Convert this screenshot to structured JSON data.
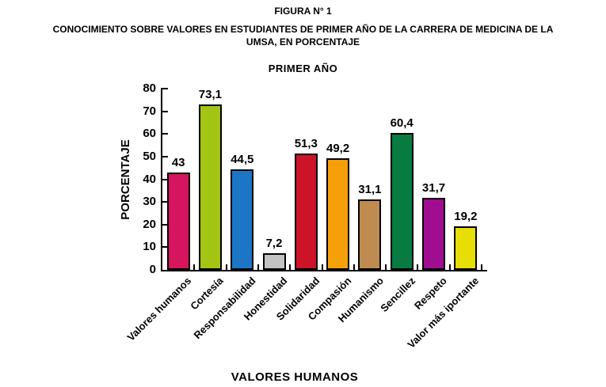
{
  "header": {
    "figure_label": "FIGURA N° 1",
    "title_line1": "CONOCIMIENTO SOBRE VALORES EN ESTUDIANTES DE PRIMER AÑO DE LA CARRERA DE MEDICINA DE LA",
    "title_line2": "UMSA, EN PORCENTAJE"
  },
  "chart_data": {
    "type": "bar",
    "title": "PRIMER AÑO",
    "xlabel": "VALORES HUMANOS",
    "ylabel": "PORCENTAJE",
    "ylim": [
      0,
      80
    ],
    "yticks": [
      0,
      10,
      20,
      30,
      40,
      50,
      60,
      70,
      80
    ],
    "grid": false,
    "legend": "none",
    "categories": [
      "Valores humanos",
      "Cortesía",
      "Responsabilidad",
      "Honestidad",
      "Solidaridad",
      "Compasión",
      "Humanismo",
      "Sencillez",
      "Respeto",
      "Valor más iportante"
    ],
    "values": [
      43,
      73.1,
      44.5,
      7.2,
      51.3,
      49.2,
      31.1,
      60.4,
      31.7,
      19.2
    ],
    "value_labels": [
      "43",
      "73,1",
      "44,5",
      "7,2",
      "51,3",
      "49,2",
      "31,1",
      "60,4",
      "31,7",
      "19,2"
    ],
    "bar_colors": [
      "#D5155E",
      "#A4C414",
      "#1C76C5",
      "#C3C3C3",
      "#CC1328",
      "#F5A009",
      "#BF8B50",
      "#077B41",
      "#A00D90",
      "#E6DE04"
    ]
  }
}
